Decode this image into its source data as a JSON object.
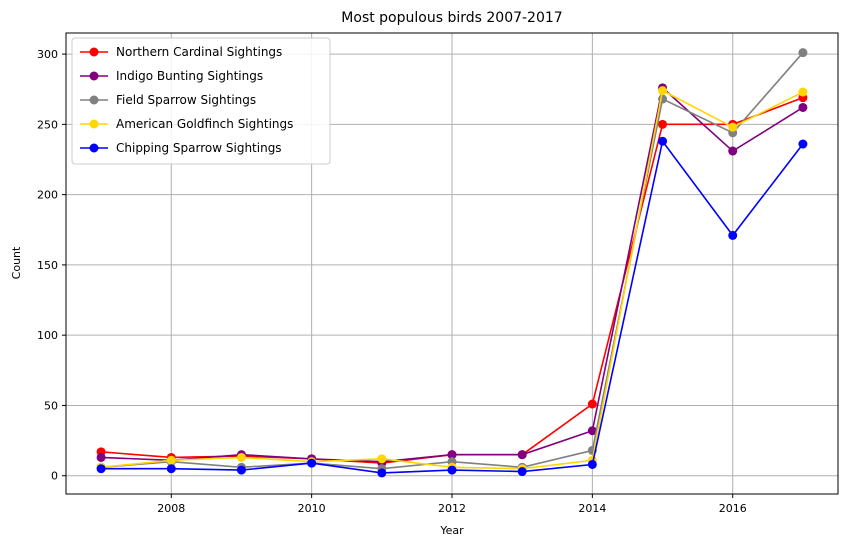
{
  "chart_data": {
    "type": "line",
    "title": "Most populous birds 2007-2017",
    "xlabel": "Year",
    "ylabel": "Count",
    "x": [
      2007,
      2008,
      2009,
      2010,
      2011,
      2012,
      2013,
      2014,
      2015,
      2016,
      2017
    ],
    "xlim": [
      2006.5,
      2017.5
    ],
    "ylim": [
      -13,
      315
    ],
    "xticks": [
      2008,
      2010,
      2012,
      2014,
      2016
    ],
    "yticks": [
      0,
      50,
      100,
      150,
      200,
      250,
      300
    ],
    "grid": true,
    "legend_position": "top-left",
    "series": [
      {
        "name": "Northern Cardinal Sightings",
        "color": "#ff0000",
        "values": [
          17,
          13,
          14,
          12,
          9,
          15,
          15,
          51,
          250,
          250,
          269
        ]
      },
      {
        "name": "Indigo Bunting Sightings",
        "color": "#800080",
        "values": [
          13,
          11,
          15,
          12,
          10,
          15,
          15,
          32,
          276,
          231,
          262
        ]
      },
      {
        "name": "Field Sparrow Sightings",
        "color": "#808080",
        "values": [
          6,
          10,
          6,
          9,
          5,
          10,
          6,
          18,
          268,
          244,
          301
        ]
      },
      {
        "name": "American Goldfinch Sightings",
        "color": "#ffd700",
        "values": [
          6,
          11,
          13,
          10,
          12,
          6,
          5,
          11,
          274,
          248,
          273
        ]
      },
      {
        "name": "Chipping Sparrow Sightings",
        "color": "#0000ff",
        "values": [
          5,
          5,
          4,
          9,
          2,
          4,
          3,
          8,
          238,
          171,
          236
        ]
      }
    ]
  }
}
